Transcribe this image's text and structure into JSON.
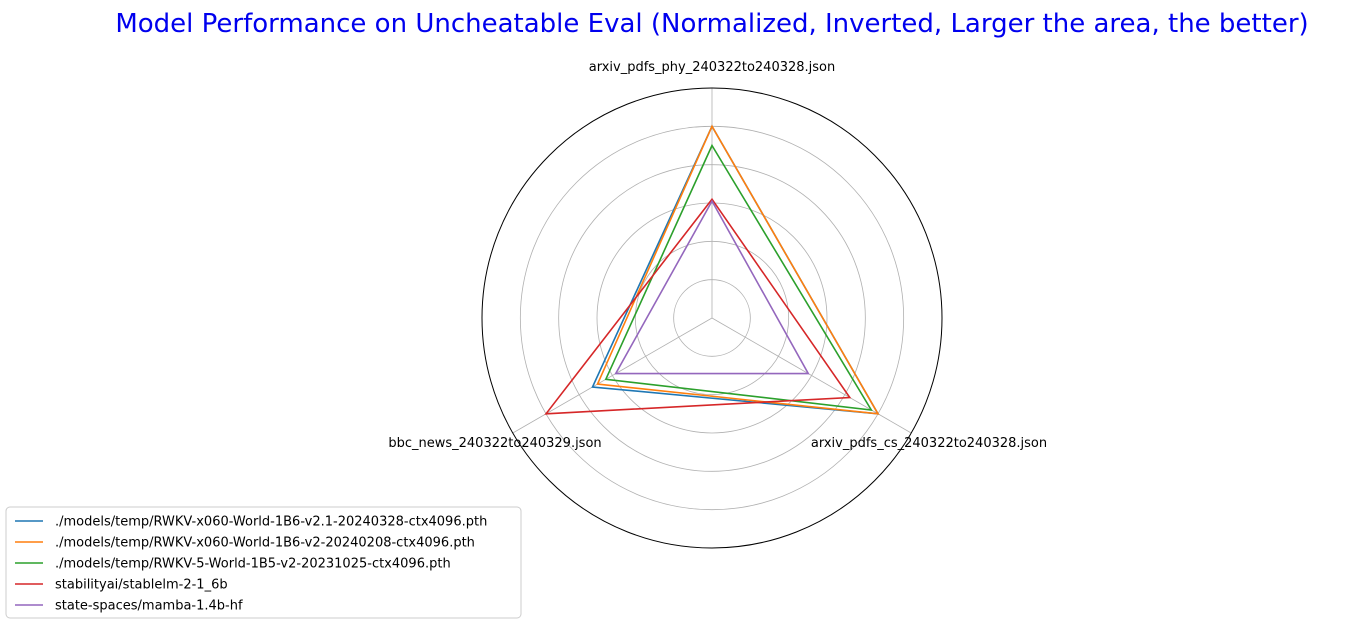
{
  "chart_data": {
    "type": "radar",
    "title": "Model Performance on Uncheatable Eval (Normalized, Inverted, Larger the area, the better)",
    "axes": [
      "arxiv_pdfs_phy_240322to240328.json",
      "arxiv_pdfs_cs_240322to240328.json",
      "bbc_news_240322to240329.json"
    ],
    "rlim": [
      0,
      1.2
    ],
    "rings": [
      0.2,
      0.4,
      0.6,
      0.8,
      1.0
    ],
    "grid": true,
    "legend": "bottom-left",
    "series": [
      {
        "name": "./models/temp/RWKV-x060-World-1B6-v2.1-20240328-ctx4096.pth",
        "values": [
          1.0,
          1.0,
          0.72
        ],
        "color": "#1f77b4"
      },
      {
        "name": "./models/temp/RWKV-x060-World-1B6-v2-20240208-ctx4096.pth",
        "values": [
          1.0,
          1.0,
          0.69
        ],
        "color": "#ff7f0e"
      },
      {
        "name": "./models/temp/RWKV-5-World-1B5-v2-20231025-ctx4096.pth",
        "values": [
          0.9,
          0.96,
          0.64
        ],
        "color": "#2ca02c"
      },
      {
        "name": "stabilityai/stablelm-2-1_6b",
        "values": [
          0.62,
          0.83,
          1.0
        ],
        "color": "#d62728"
      },
      {
        "name": "state-spaces/mamba-1.4b-hf",
        "values": [
          0.61,
          0.58,
          0.58
        ],
        "color": "#9467bd"
      }
    ]
  }
}
